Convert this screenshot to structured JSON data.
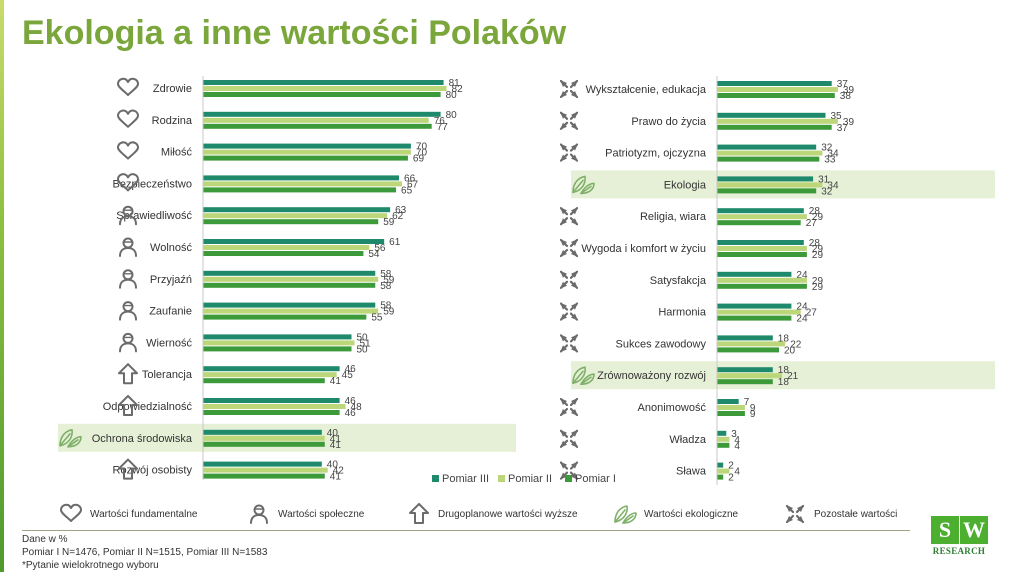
{
  "title": "Ekologia a inne wartości Polaków",
  "colors": {
    "pomiar_iii": "#1e8a6b",
    "pomiar_ii": "#bcd67a",
    "pomiar_i": "#3d9a3a",
    "highlight": "#e6f0d6",
    "title": "#7aa63b",
    "icon": "#6b6b6b"
  },
  "legend": [
    "Pomiar III",
    "Pomiar II",
    "Pomiar I"
  ],
  "chart_data": [
    {
      "type": "bar",
      "orientation": "horizontal",
      "series_order": [
        "Pomiar III",
        "Pomiar II",
        "Pomiar I"
      ],
      "rows": [
        {
          "label": "Zdrowie",
          "category": "fundamentalne",
          "values": [
            81,
            82,
            80
          ]
        },
        {
          "label": "Rodzina",
          "category": "fundamentalne",
          "values": [
            80,
            76,
            77
          ]
        },
        {
          "label": "Miłość",
          "category": "fundamentalne",
          "values": [
            70,
            70,
            69
          ]
        },
        {
          "label": "Bezpieczeństwo",
          "category": "fundamentalne",
          "values": [
            66,
            67,
            65
          ]
        },
        {
          "label": "Sprawiedliwość",
          "category": "spoleczne",
          "values": [
            63,
            62,
            59
          ]
        },
        {
          "label": "Wolność",
          "category": "spoleczne",
          "values": [
            61,
            56,
            54
          ]
        },
        {
          "label": "Przyjaźń",
          "category": "spoleczne",
          "values": [
            58,
            59,
            58
          ]
        },
        {
          "label": "Zaufanie",
          "category": "spoleczne",
          "values": [
            58,
            59,
            55
          ]
        },
        {
          "label": "Wierność",
          "category": "spoleczne",
          "values": [
            50,
            51,
            50
          ]
        },
        {
          "label": "Tolerancja",
          "category": "drugoplanowe",
          "values": [
            46,
            45,
            41
          ]
        },
        {
          "label": "Odpowiedzialność",
          "category": "drugoplanowe",
          "values": [
            46,
            48,
            46
          ]
        },
        {
          "label": "Ochrona środowiska",
          "category": "ekologiczne",
          "highlight": true,
          "values": [
            40,
            41,
            41
          ]
        },
        {
          "label": "Rozwój osobisty",
          "category": "drugoplanowe",
          "values": [
            40,
            42,
            41
          ]
        }
      ]
    },
    {
      "type": "bar",
      "orientation": "horizontal",
      "series_order": [
        "Pomiar III",
        "Pomiar II",
        "Pomiar I"
      ],
      "rows": [
        {
          "label": "Wykształcenie, edukacja",
          "category": "pozostale",
          "values": [
            37,
            39,
            38
          ]
        },
        {
          "label": "Prawo do życia",
          "category": "pozostale",
          "values": [
            35,
            39,
            37
          ]
        },
        {
          "label": "Patriotyzm, ojczyzna",
          "category": "pozostale",
          "values": [
            32,
            34,
            33
          ]
        },
        {
          "label": "Ekologia",
          "category": "ekologiczne",
          "highlight": true,
          "values": [
            31,
            34,
            32
          ]
        },
        {
          "label": "Religia, wiara",
          "category": "pozostale",
          "values": [
            28,
            29,
            27
          ]
        },
        {
          "label": "Wygoda i komfort w życiu",
          "category": "pozostale",
          "values": [
            28,
            29,
            29
          ]
        },
        {
          "label": "Satysfakcja",
          "category": "pozostale",
          "values": [
            24,
            29,
            29
          ]
        },
        {
          "label": "Harmonia",
          "category": "pozostale",
          "values": [
            24,
            27,
            24
          ]
        },
        {
          "label": "Sukces zawodowy",
          "category": "pozostale",
          "values": [
            18,
            22,
            20
          ]
        },
        {
          "label": "Zrównoważony rozwój",
          "category": "ekologiczne",
          "highlight": true,
          "values": [
            18,
            21,
            18
          ]
        },
        {
          "label": "Anonimowość",
          "category": "pozostale",
          "values": [
            7,
            9,
            9
          ]
        },
        {
          "label": "Władza",
          "category": "pozostale",
          "values": [
            3,
            4,
            4
          ]
        },
        {
          "label": "Sława",
          "category": "pozostale",
          "values": [
            2,
            4,
            2
          ]
        }
      ]
    }
  ],
  "category_legend": [
    {
      "key": "fundamentalne",
      "icon": "heart-icon",
      "label": "Wartości fundamentalne"
    },
    {
      "key": "spoleczne",
      "icon": "person-icon",
      "label": "Wartości społeczne"
    },
    {
      "key": "drugoplanowe",
      "icon": "arrow-up-icon",
      "label": "Drugoplanowe wartości wyższe"
    },
    {
      "key": "ekologiczne",
      "icon": "leaf-icon",
      "label": "Wartości ekologiczne"
    },
    {
      "key": "pozostale",
      "icon": "arrows-in-icon",
      "label": "Pozostałe wartości"
    }
  ],
  "notes": {
    "line1": "Dane w %",
    "line2": "Pomiar I N=1476, Pomiar II N=1515, Pomiar III N=1583",
    "line3": "*Pytanie wielokrotnego wyboru"
  },
  "logo": {
    "s": "S",
    "w": "W",
    "text": "RESEARCH"
  }
}
